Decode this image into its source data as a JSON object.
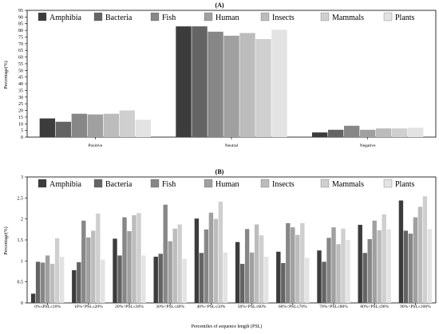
{
  "chart_data": [
    {
      "type": "bar",
      "panel_label": "(A)",
      "title": "",
      "xlabel": "",
      "ylabel": "Percentage(%)",
      "ylim": [
        0,
        95
      ],
      "yticks": [
        0,
        5,
        10,
        15,
        20,
        25,
        30,
        35,
        40,
        45,
        50,
        55,
        60,
        65,
        70,
        75,
        80,
        85,
        90,
        95
      ],
      "categories": [
        "Positive",
        "Neutral",
        "Negative"
      ],
      "legend_position": "top-left",
      "series": [
        {
          "name": "Amphibia",
          "color": "#3c3c3c",
          "values": [
            14,
            83,
            3.5
          ]
        },
        {
          "name": "Bacteria",
          "color": "#646464",
          "values": [
            11.5,
            83,
            5.5
          ]
        },
        {
          "name": "Fish",
          "color": "#878787",
          "values": [
            17.5,
            79,
            8.5
          ]
        },
        {
          "name": "Human",
          "color": "#a0a0a0",
          "values": [
            17,
            76,
            5.5
          ]
        },
        {
          "name": "Insects",
          "color": "#bcbcbc",
          "values": [
            17.5,
            78,
            6.5
          ]
        },
        {
          "name": "Mammals",
          "color": "#cfcfcf",
          "values": [
            20,
            73.5,
            6.5
          ]
        },
        {
          "name": "Plants",
          "color": "#e3e3e3",
          "values": [
            13,
            80.5,
            7
          ]
        }
      ]
    },
    {
      "type": "bar",
      "panel_label": "(B)",
      "title": "",
      "xlabel": "Percentiles of sequence length (PSL)",
      "ylabel": "Percentage(%)",
      "ylim": [
        0,
        3
      ],
      "yticks": [
        0,
        0.5,
        1,
        1.5,
        2,
        2.5,
        3
      ],
      "categories": [
        "0%≤PSL≤10%",
        "10%<PSL≤20%",
        "20%<PSL≤30%",
        "30%<PSL≤40%",
        "40%<PSL≤50%",
        "50%<PSL≤60%",
        "60%<PSL≤70%",
        "70%<PSL≤80%",
        "80%<PSL≤90%",
        "90%<PSL≤100%"
      ],
      "legend_position": "top-left",
      "series": [
        {
          "name": "Amphibia",
          "color": "#3c3c3c",
          "values": [
            0.22,
            0.78,
            1.53,
            1.1,
            2.01,
            1.45,
            1.22,
            1.25,
            1.86,
            2.44
          ]
        },
        {
          "name": "Bacteria",
          "color": "#646464",
          "values": [
            0.98,
            0.97,
            1.13,
            1.17,
            1.19,
            0.93,
            0.95,
            0.98,
            1.19,
            1.72
          ]
        },
        {
          "name": "Fish",
          "color": "#878787",
          "values": [
            0.96,
            1.96,
            2.04,
            2.34,
            1.75,
            1.76,
            1.9,
            1.55,
            1.52,
            1.65
          ]
        },
        {
          "name": "Human",
          "color": "#a0a0a0",
          "values": [
            1.13,
            1.56,
            1.71,
            1.47,
            2.15,
            1.2,
            1.8,
            1.8,
            1.96,
            2.04
          ]
        },
        {
          "name": "Insects",
          "color": "#bcbcbc",
          "values": [
            0.93,
            1.72,
            2.09,
            1.77,
            2.0,
            1.87,
            1.62,
            1.4,
            1.73,
            2.29
          ]
        },
        {
          "name": "Mammals",
          "color": "#cfcfcf",
          "values": [
            1.54,
            2.13,
            2.14,
            1.87,
            2.41,
            1.61,
            1.9,
            1.77,
            2.11,
            2.54
          ]
        },
        {
          "name": "Plants",
          "color": "#e3e3e3",
          "values": [
            1.1,
            1.03,
            1.13,
            1.05,
            1.2,
            1.1,
            1.07,
            1.5,
            1.75,
            1.76
          ]
        }
      ]
    }
  ]
}
